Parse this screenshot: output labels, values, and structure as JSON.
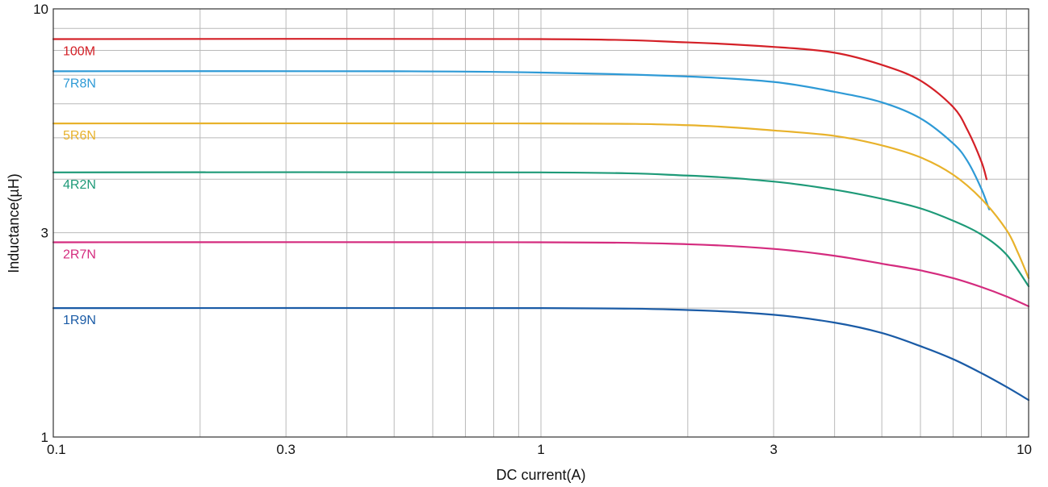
{
  "chart_data": {
    "type": "line",
    "title": "",
    "xlabel": "DC current(A)",
    "ylabel": "Inductance(µH)",
    "x_scale": "log",
    "y_scale": "log",
    "xlim": [
      0.1,
      10
    ],
    "ylim": [
      1,
      10
    ],
    "x_ticks": [
      {
        "value": 0.1,
        "label": "0.1"
      },
      {
        "value": 0.3,
        "label": "0.3"
      },
      {
        "value": 1,
        "label": "1"
      },
      {
        "value": 3,
        "label": "3"
      },
      {
        "value": 10,
        "label": "10"
      }
    ],
    "y_ticks": [
      {
        "value": 1,
        "label": "1"
      },
      {
        "value": 3,
        "label": "3"
      },
      {
        "value": 10,
        "label": "10"
      }
    ],
    "grid": true,
    "legend": "inline labels at left",
    "series": [
      {
        "name": "100M",
        "color": "#d42027",
        "x": [
          0.1,
          1,
          2,
          3,
          4,
          5,
          6,
          7,
          7.5,
          8,
          8.2
        ],
        "y": [
          8.5,
          8.5,
          8.35,
          8.15,
          7.9,
          7.4,
          6.8,
          5.9,
          5.2,
          4.4,
          4.0
        ]
      },
      {
        "name": "7R8N",
        "color": "#2e9ad6",
        "x": [
          0.1,
          0.5,
          1,
          2,
          3,
          4,
          5,
          6,
          7,
          7.5,
          8,
          8.3
        ],
        "y": [
          7.15,
          7.15,
          7.1,
          6.95,
          6.75,
          6.4,
          6.05,
          5.55,
          4.85,
          4.4,
          3.8,
          3.4
        ]
      },
      {
        "name": "5R6N",
        "color": "#e8b22b",
        "x": [
          0.1,
          1,
          2,
          3,
          4,
          5,
          6,
          7,
          8,
          9,
          9.5,
          10
        ],
        "y": [
          5.4,
          5.4,
          5.35,
          5.2,
          5.05,
          4.8,
          4.5,
          4.1,
          3.6,
          3.05,
          2.7,
          2.35
        ]
      },
      {
        "name": "4R2N",
        "color": "#1e9a78",
        "x": [
          0.1,
          1,
          2,
          3,
          4,
          5,
          6,
          7,
          8,
          9,
          10
        ],
        "y": [
          4.15,
          4.15,
          4.08,
          3.95,
          3.78,
          3.6,
          3.42,
          3.2,
          2.97,
          2.67,
          2.25
        ]
      },
      {
        "name": "2R7N",
        "color": "#d42b7e",
        "x": [
          0.1,
          1,
          2,
          3,
          4,
          5,
          6,
          7,
          8,
          9,
          10
        ],
        "y": [
          2.85,
          2.85,
          2.82,
          2.75,
          2.65,
          2.54,
          2.45,
          2.35,
          2.24,
          2.13,
          2.02
        ]
      },
      {
        "name": "1R9N",
        "color": "#1a5ba6",
        "x": [
          0.1,
          1,
          2,
          3,
          4,
          5,
          6,
          7,
          8,
          9,
          10
        ],
        "y": [
          2.0,
          2.0,
          1.98,
          1.93,
          1.85,
          1.75,
          1.63,
          1.52,
          1.41,
          1.31,
          1.22
        ]
      }
    ]
  }
}
